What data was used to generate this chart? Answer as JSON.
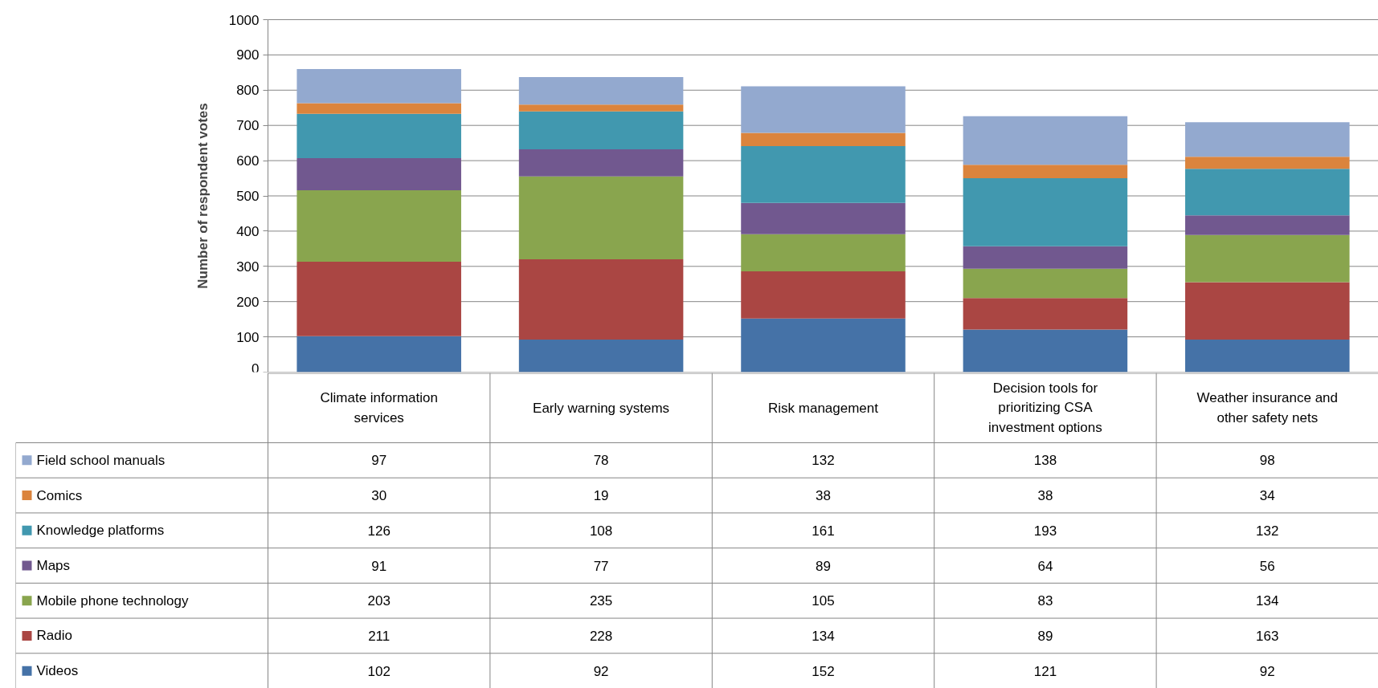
{
  "chart_data": {
    "type": "bar",
    "stacked": true,
    "ylabel": "Number of respondent votes",
    "categories": [
      "Climate information services",
      "Early warning systems",
      "Risk management",
      "Decision tools for prioritizing CSA investment options",
      "Weather insurance and other safety nets"
    ],
    "series": [
      {
        "name": "Videos",
        "color": "#4572a7",
        "values": [
          102,
          92,
          152,
          121,
          92
        ]
      },
      {
        "name": "Radio",
        "color": "#aa4643",
        "values": [
          211,
          228,
          134,
          89,
          163
        ]
      },
      {
        "name": "Mobile phone technology",
        "color": "#89a54e",
        "values": [
          203,
          235,
          105,
          83,
          134
        ]
      },
      {
        "name": "Maps",
        "color": "#71588f",
        "values": [
          91,
          77,
          89,
          64,
          56
        ]
      },
      {
        "name": "Knowledge platforms",
        "color": "#4198af",
        "values": [
          126,
          108,
          161,
          193,
          132
        ]
      },
      {
        "name": "Comics",
        "color": "#db843d",
        "values": [
          30,
          19,
          38,
          38,
          34
        ]
      },
      {
        "name": "Field school manuals",
        "color": "#93a9cf",
        "values": [
          97,
          78,
          132,
          138,
          98
        ]
      }
    ],
    "ylim": [
      0,
      1000
    ],
    "yticks": [
      0,
      100,
      200,
      300,
      400,
      500,
      600,
      700,
      800,
      900,
      1000
    ],
    "grid": "y",
    "legend": "bottom",
    "data_labels": true
  }
}
